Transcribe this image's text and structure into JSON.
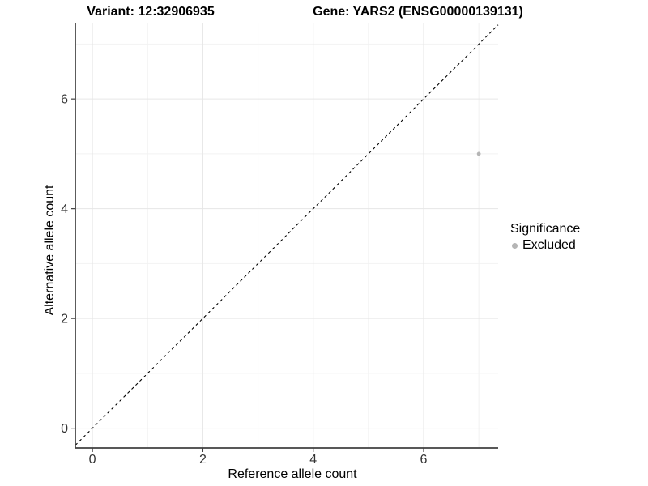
{
  "chart_data": {
    "type": "scatter",
    "title_left": "Variant: 12:32906935",
    "title_right": "Gene: YARS2 (ENSG00000139131)",
    "xlabel": "Reference allele count",
    "ylabel": "Alternative allele count",
    "xlim": [
      -0.31,
      7.35
    ],
    "ylim": [
      -0.36,
      7.39
    ],
    "x_major_ticks": [
      0,
      2,
      4,
      6
    ],
    "y_major_ticks": [
      0,
      2,
      4,
      6
    ],
    "x_minor_ticks": [
      1,
      3,
      5,
      7
    ],
    "y_minor_ticks": [
      1,
      3,
      5,
      7
    ],
    "grid": true,
    "points": [
      {
        "x": 7,
        "y": 5,
        "series": "Excluded",
        "color": "#b5b5b5"
      }
    ],
    "reference_line": {
      "type": "identity",
      "style": "dashed",
      "color": "#000000"
    },
    "legend": {
      "title": "Significance",
      "position": "right",
      "entries": [
        {
          "label": "Excluded",
          "color": "#b5b5b5"
        }
      ]
    },
    "colors": {
      "grid_major": "#e6e6e6",
      "grid_minor": "#f2f2f2",
      "axis_line": "#404040",
      "tick_text": "#333333",
      "background": "#ffffff"
    }
  }
}
